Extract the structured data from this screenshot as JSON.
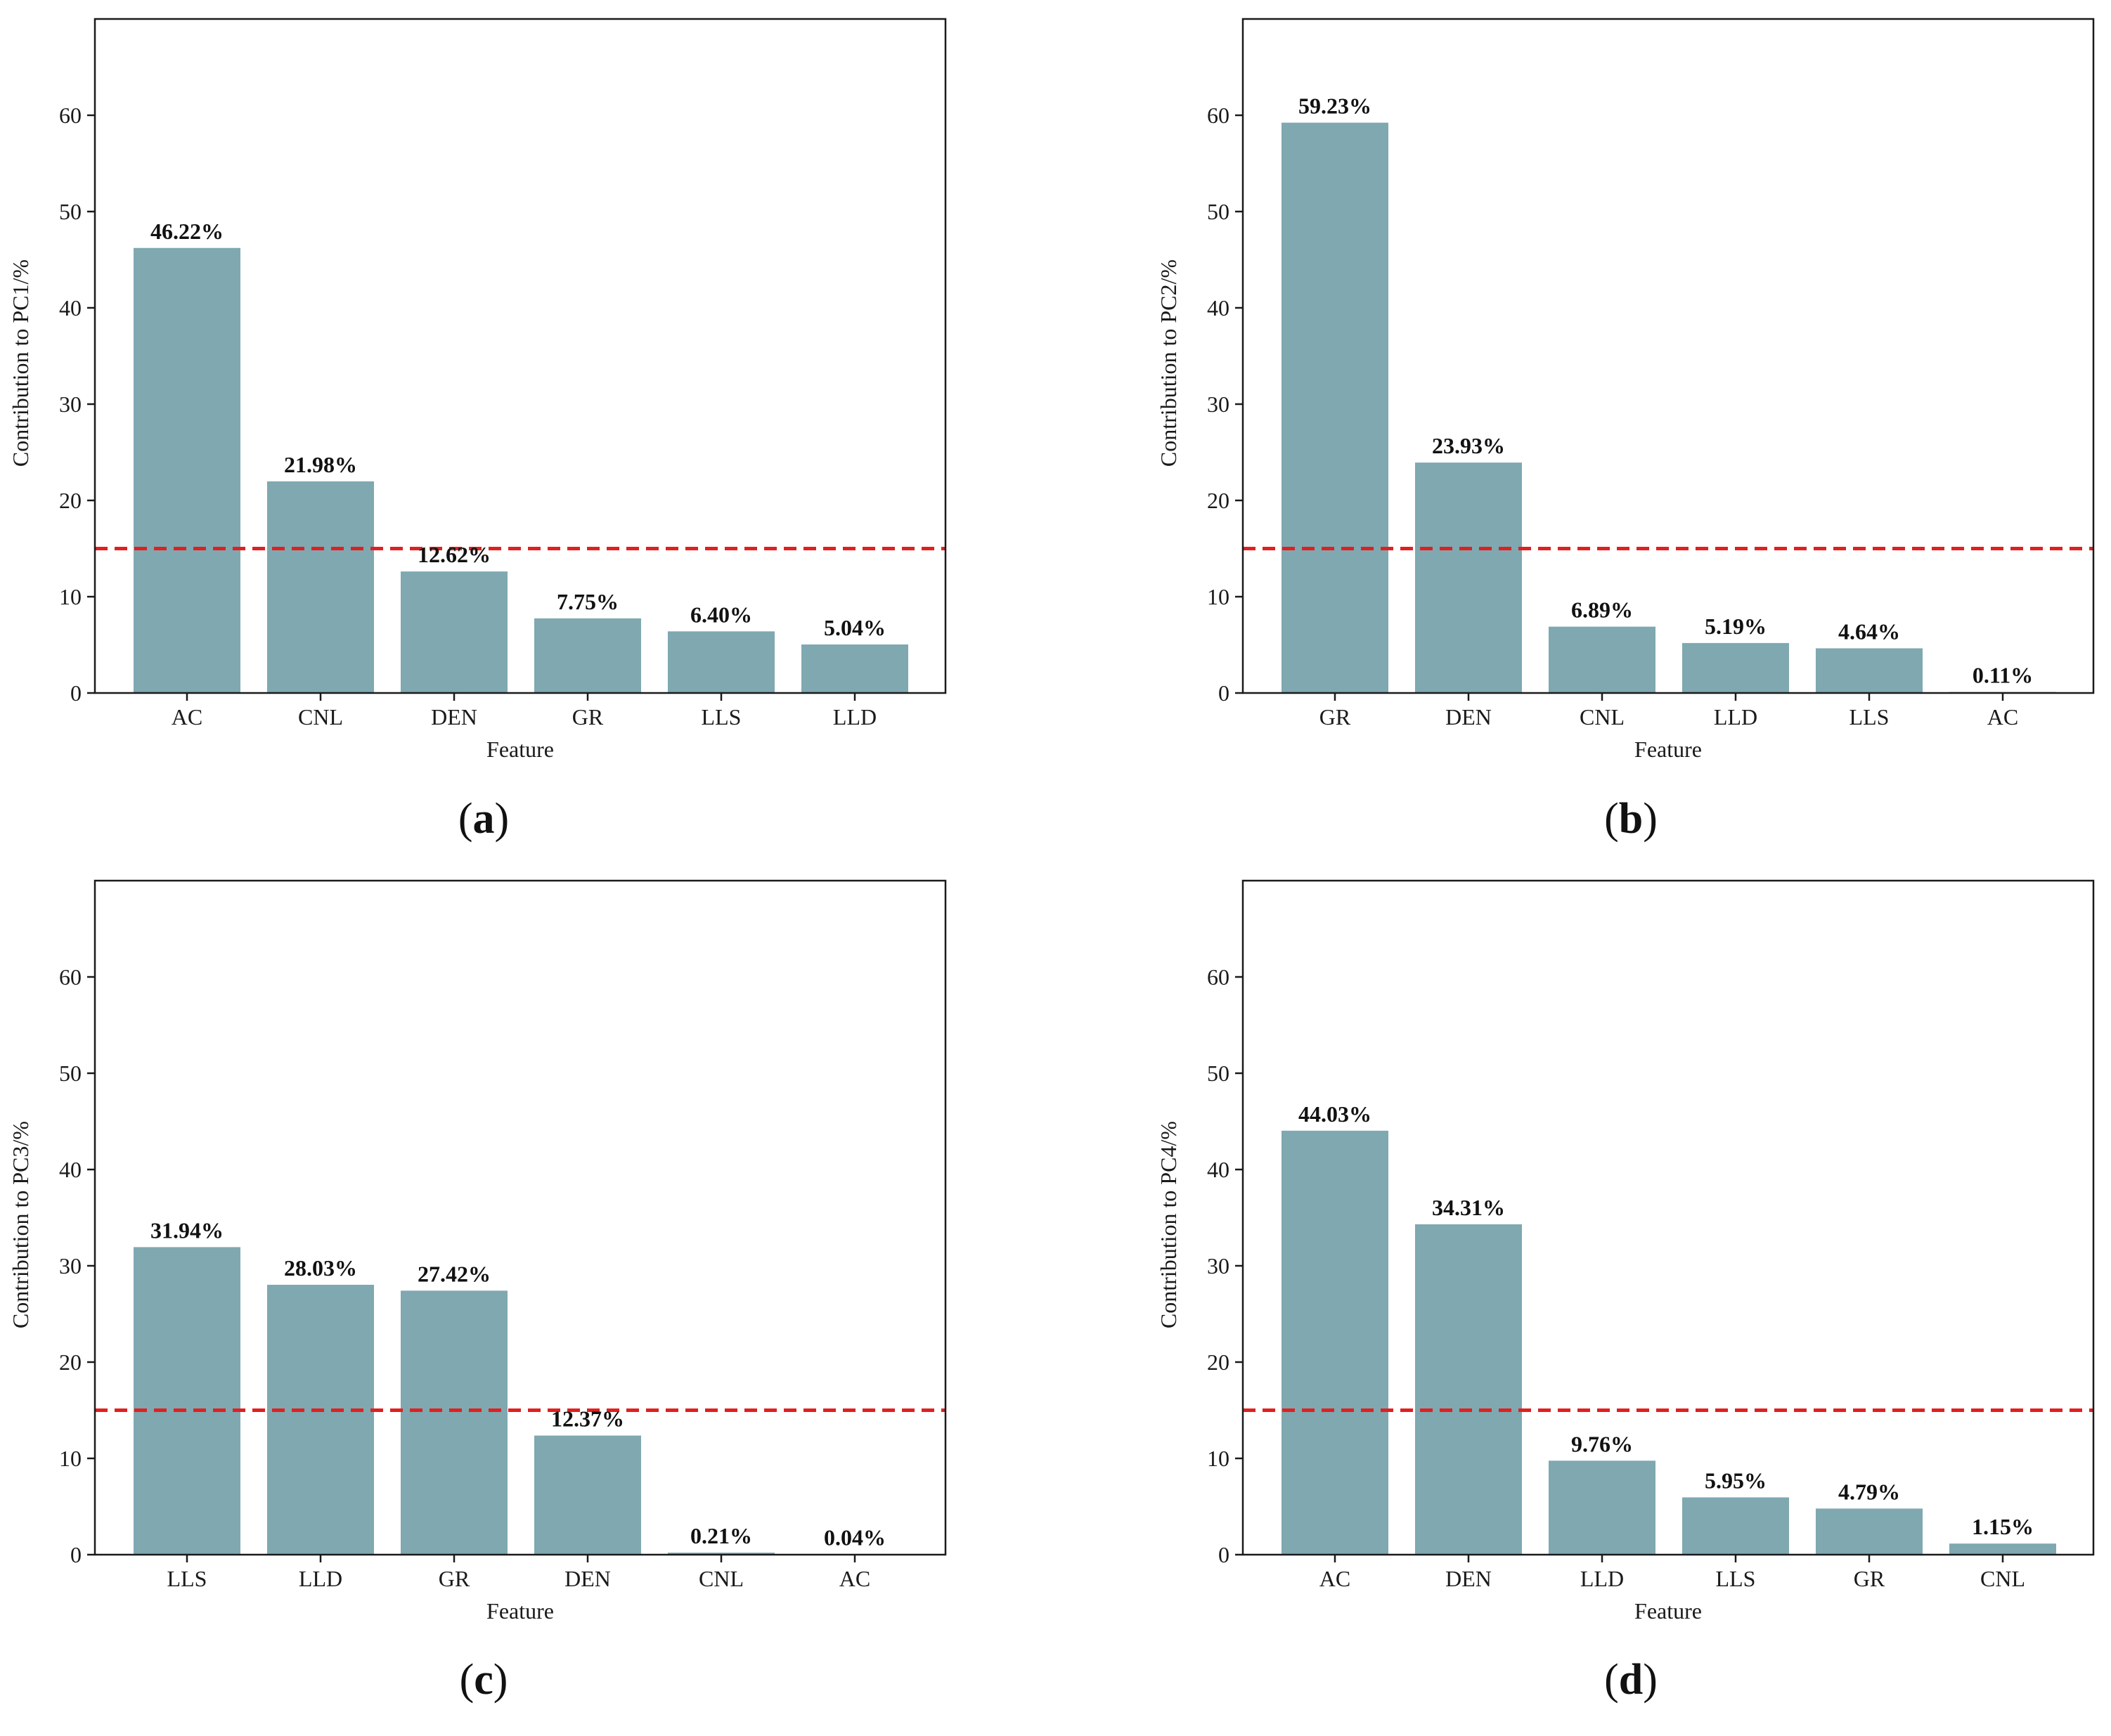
{
  "colors": {
    "bar": "#7fa8b1",
    "threshold": "#e02020",
    "axis": "#1a1a1a",
    "background": "#ffffff"
  },
  "chart_data": [
    {
      "type": "bar",
      "caption": "a",
      "title": "",
      "xlabel": "Feature",
      "ylabel": "Contribution to PC1/%",
      "ylim": [
        0,
        70
      ],
      "yticks": [
        0,
        10,
        20,
        30,
        40,
        50,
        60
      ],
      "threshold": 15,
      "categories": [
        "AC",
        "CNL",
        "DEN",
        "GR",
        "LLS",
        "LLD"
      ],
      "values": [
        46.22,
        21.98,
        12.62,
        7.75,
        6.4,
        5.04
      ],
      "labels": [
        "46.22%",
        "21.98%",
        "12.62%",
        "7.75%",
        "6.40%",
        "5.04%"
      ]
    },
    {
      "type": "bar",
      "caption": "b",
      "title": "",
      "xlabel": "Feature",
      "ylabel": "Contribution to PC2/%",
      "ylim": [
        0,
        70
      ],
      "yticks": [
        0,
        10,
        20,
        30,
        40,
        50,
        60
      ],
      "threshold": 15,
      "categories": [
        "GR",
        "DEN",
        "CNL",
        "LLD",
        "LLS",
        "AC"
      ],
      "values": [
        59.23,
        23.93,
        6.89,
        5.19,
        4.64,
        0.11
      ],
      "labels": [
        "59.23%",
        "23.93%",
        "6.89%",
        "5.19%",
        "4.64%",
        "0.11%"
      ]
    },
    {
      "type": "bar",
      "caption": "c",
      "title": "",
      "xlabel": "Feature",
      "ylabel": "Contribution to PC3/%",
      "ylim": [
        0,
        70
      ],
      "yticks": [
        0,
        10,
        20,
        30,
        40,
        50,
        60
      ],
      "threshold": 15,
      "categories": [
        "LLS",
        "LLD",
        "GR",
        "DEN",
        "CNL",
        "AC"
      ],
      "values": [
        31.94,
        28.03,
        27.42,
        12.37,
        0.21,
        0.04
      ],
      "labels": [
        "31.94%",
        "28.03%",
        "27.42%",
        "12.37%",
        "0.21%",
        "0.04%"
      ]
    },
    {
      "type": "bar",
      "caption": "d",
      "title": "",
      "xlabel": "Feature",
      "ylabel": "Contribution to PC4/%",
      "ylim": [
        0,
        70
      ],
      "yticks": [
        0,
        10,
        20,
        30,
        40,
        50,
        60
      ],
      "threshold": 15,
      "categories": [
        "AC",
        "DEN",
        "LLD",
        "LLS",
        "GR",
        "CNL"
      ],
      "values": [
        44.03,
        34.31,
        9.76,
        5.95,
        4.79,
        1.15
      ],
      "labels": [
        "44.03%",
        "34.31%",
        "9.76%",
        "5.95%",
        "4.79%",
        "1.15%"
      ]
    }
  ]
}
